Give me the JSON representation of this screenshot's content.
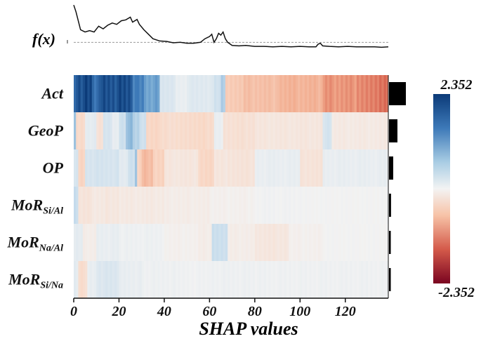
{
  "chart_data": {
    "type": "heatmap",
    "title": "",
    "xlabel": "SHAP values",
    "fx_label": "f(x)",
    "x_ticks": [
      0,
      20,
      40,
      60,
      80,
      100,
      120
    ],
    "xlim": [
      0,
      139
    ],
    "n_instances": 139,
    "colormap": {
      "positive": "#0b3a78",
      "zero": "#f2f2f2",
      "negative": "#8b0a20"
    },
    "colorbar": {
      "max_label": "2.352",
      "min_label": "-2.352",
      "max": 2.352,
      "min": -2.352
    },
    "features": [
      {
        "name": "Act",
        "sub": "",
        "importance": 1.0,
        "segments": [
          [
            0,
            5,
            2.0
          ],
          [
            5,
            8,
            2.2
          ],
          [
            8,
            12,
            1.8
          ],
          [
            12,
            26,
            2.1
          ],
          [
            26,
            28,
            1.6
          ],
          [
            28,
            31,
            1.5
          ],
          [
            31,
            38,
            1.2
          ],
          [
            38,
            45,
            0.25
          ],
          [
            45,
            50,
            0.1
          ],
          [
            50,
            62,
            0.2
          ],
          [
            62,
            65,
            0.35
          ],
          [
            65,
            67,
            0.7
          ],
          [
            67,
            75,
            -0.6
          ],
          [
            75,
            90,
            -0.75
          ],
          [
            90,
            110,
            -0.9
          ],
          [
            110,
            125,
            -1.2
          ],
          [
            125,
            135,
            -1.35
          ],
          [
            135,
            139,
            -1.5
          ]
        ]
      },
      {
        "name": "GeoP",
        "sub": "",
        "importance": 0.5,
        "segments": [
          [
            0,
            1,
            0.8
          ],
          [
            1,
            5,
            -0.4
          ],
          [
            5,
            10,
            0.15
          ],
          [
            10,
            13,
            -0.3
          ],
          [
            13,
            17,
            0.3
          ],
          [
            17,
            20,
            0.1
          ],
          [
            20,
            23,
            0.4
          ],
          [
            23,
            26,
            0.9
          ],
          [
            26,
            29,
            0.6
          ],
          [
            29,
            32,
            0.4
          ],
          [
            32,
            38,
            -0.45
          ],
          [
            38,
            50,
            -0.35
          ],
          [
            50,
            62,
            -0.4
          ],
          [
            62,
            66,
            0.1
          ],
          [
            66,
            80,
            -0.3
          ],
          [
            80,
            110,
            -0.2
          ],
          [
            110,
            114,
            0.3
          ],
          [
            114,
            139,
            -0.15
          ]
        ]
      },
      {
        "name": "OP",
        "sub": "",
        "importance": 0.25,
        "segments": [
          [
            0,
            2,
            0.3
          ],
          [
            2,
            5,
            -0.5
          ],
          [
            5,
            20,
            0.3
          ],
          [
            20,
            24,
            0.15
          ],
          [
            24,
            27,
            0.4
          ],
          [
            27,
            28,
            0.9
          ],
          [
            28,
            30,
            -0.5
          ],
          [
            30,
            35,
            -0.8
          ],
          [
            35,
            40,
            -0.5
          ],
          [
            40,
            55,
            -0.2
          ],
          [
            55,
            62,
            -0.45
          ],
          [
            62,
            68,
            -0.2
          ],
          [
            68,
            80,
            -0.25
          ],
          [
            80,
            100,
            0.1
          ],
          [
            100,
            110,
            -0.25
          ],
          [
            110,
            139,
            0.1
          ]
        ]
      },
      {
        "name": "MoR",
        "sub": "Si/Al",
        "importance": 0.12,
        "segments": [
          [
            0,
            2,
            0.45
          ],
          [
            2,
            8,
            -0.25
          ],
          [
            8,
            14,
            -0.15
          ],
          [
            14,
            20,
            -0.2
          ],
          [
            20,
            40,
            -0.15
          ],
          [
            40,
            60,
            -0.1
          ],
          [
            60,
            80,
            -0.05
          ],
          [
            80,
            100,
            0.02
          ],
          [
            100,
            139,
            0.0
          ]
        ]
      },
      {
        "name": "MoR",
        "sub": "Na/Al",
        "importance": 0.1,
        "segments": [
          [
            0,
            4,
            0.15
          ],
          [
            4,
            10,
            -0.1
          ],
          [
            10,
            20,
            0.1
          ],
          [
            20,
            40,
            0.05
          ],
          [
            40,
            55,
            -0.05
          ],
          [
            55,
            61,
            -0.1
          ],
          [
            61,
            68,
            0.4
          ],
          [
            68,
            80,
            -0.1
          ],
          [
            80,
            95,
            -0.2
          ],
          [
            95,
            110,
            -0.05
          ],
          [
            110,
            139,
            0.0
          ]
        ]
      },
      {
        "name": "MoR",
        "sub": "Si/Na",
        "importance": 0.05,
        "segments": [
          [
            0,
            2,
            0.15
          ],
          [
            2,
            6,
            -0.35
          ],
          [
            6,
            10,
            0.1
          ],
          [
            10,
            20,
            0.25
          ],
          [
            20,
            30,
            0.1
          ],
          [
            30,
            45,
            0.05
          ],
          [
            45,
            60,
            0.03
          ],
          [
            60,
            80,
            0.05
          ],
          [
            80,
            139,
            0.04
          ]
        ]
      }
    ],
    "fx_series": [
      [
        0,
        0.95
      ],
      [
        1,
        0.8
      ],
      [
        3,
        0.4
      ],
      [
        5,
        0.35
      ],
      [
        7,
        0.38
      ],
      [
        9,
        0.35
      ],
      [
        11,
        0.48
      ],
      [
        13,
        0.42
      ],
      [
        15,
        0.5
      ],
      [
        17,
        0.55
      ],
      [
        19,
        0.52
      ],
      [
        21,
        0.6
      ],
      [
        23,
        0.62
      ],
      [
        25,
        0.68
      ],
      [
        26,
        0.57
      ],
      [
        28,
        0.63
      ],
      [
        29,
        0.52
      ],
      [
        31,
        0.4
      ],
      [
        33,
        0.3
      ],
      [
        35,
        0.2
      ],
      [
        38,
        0.15
      ],
      [
        41,
        0.14
      ],
      [
        44,
        0.11
      ],
      [
        47,
        0.12
      ],
      [
        50,
        0.1
      ],
      [
        53,
        0.1
      ],
      [
        56,
        0.12
      ],
      [
        58,
        0.2
      ],
      [
        60,
        0.25
      ],
      [
        61,
        0.3
      ],
      [
        62,
        0.12
      ],
      [
        63,
        0.2
      ],
      [
        64,
        0.32
      ],
      [
        65,
        0.28
      ],
      [
        66,
        0.35
      ],
      [
        67,
        0.2
      ],
      [
        68,
        0.12
      ],
      [
        70,
        0.05
      ],
      [
        73,
        0.04
      ],
      [
        76,
        0.05
      ],
      [
        80,
        0.03
      ],
      [
        84,
        0.03
      ],
      [
        88,
        0.02
      ],
      [
        92,
        0.03
      ],
      [
        96,
        0.02
      ],
      [
        100,
        0.03
      ],
      [
        104,
        0.02
      ],
      [
        107,
        0.02
      ],
      [
        108,
        0.08
      ],
      [
        109,
        0.1
      ],
      [
        110,
        0.04
      ],
      [
        113,
        0.03
      ],
      [
        117,
        0.02
      ],
      [
        121,
        0.03
      ],
      [
        125,
        0.02
      ],
      [
        129,
        0.02
      ],
      [
        133,
        0.02
      ],
      [
        136,
        0.01
      ],
      [
        139,
        0.02
      ]
    ],
    "fx_baseline": 0.12
  }
}
